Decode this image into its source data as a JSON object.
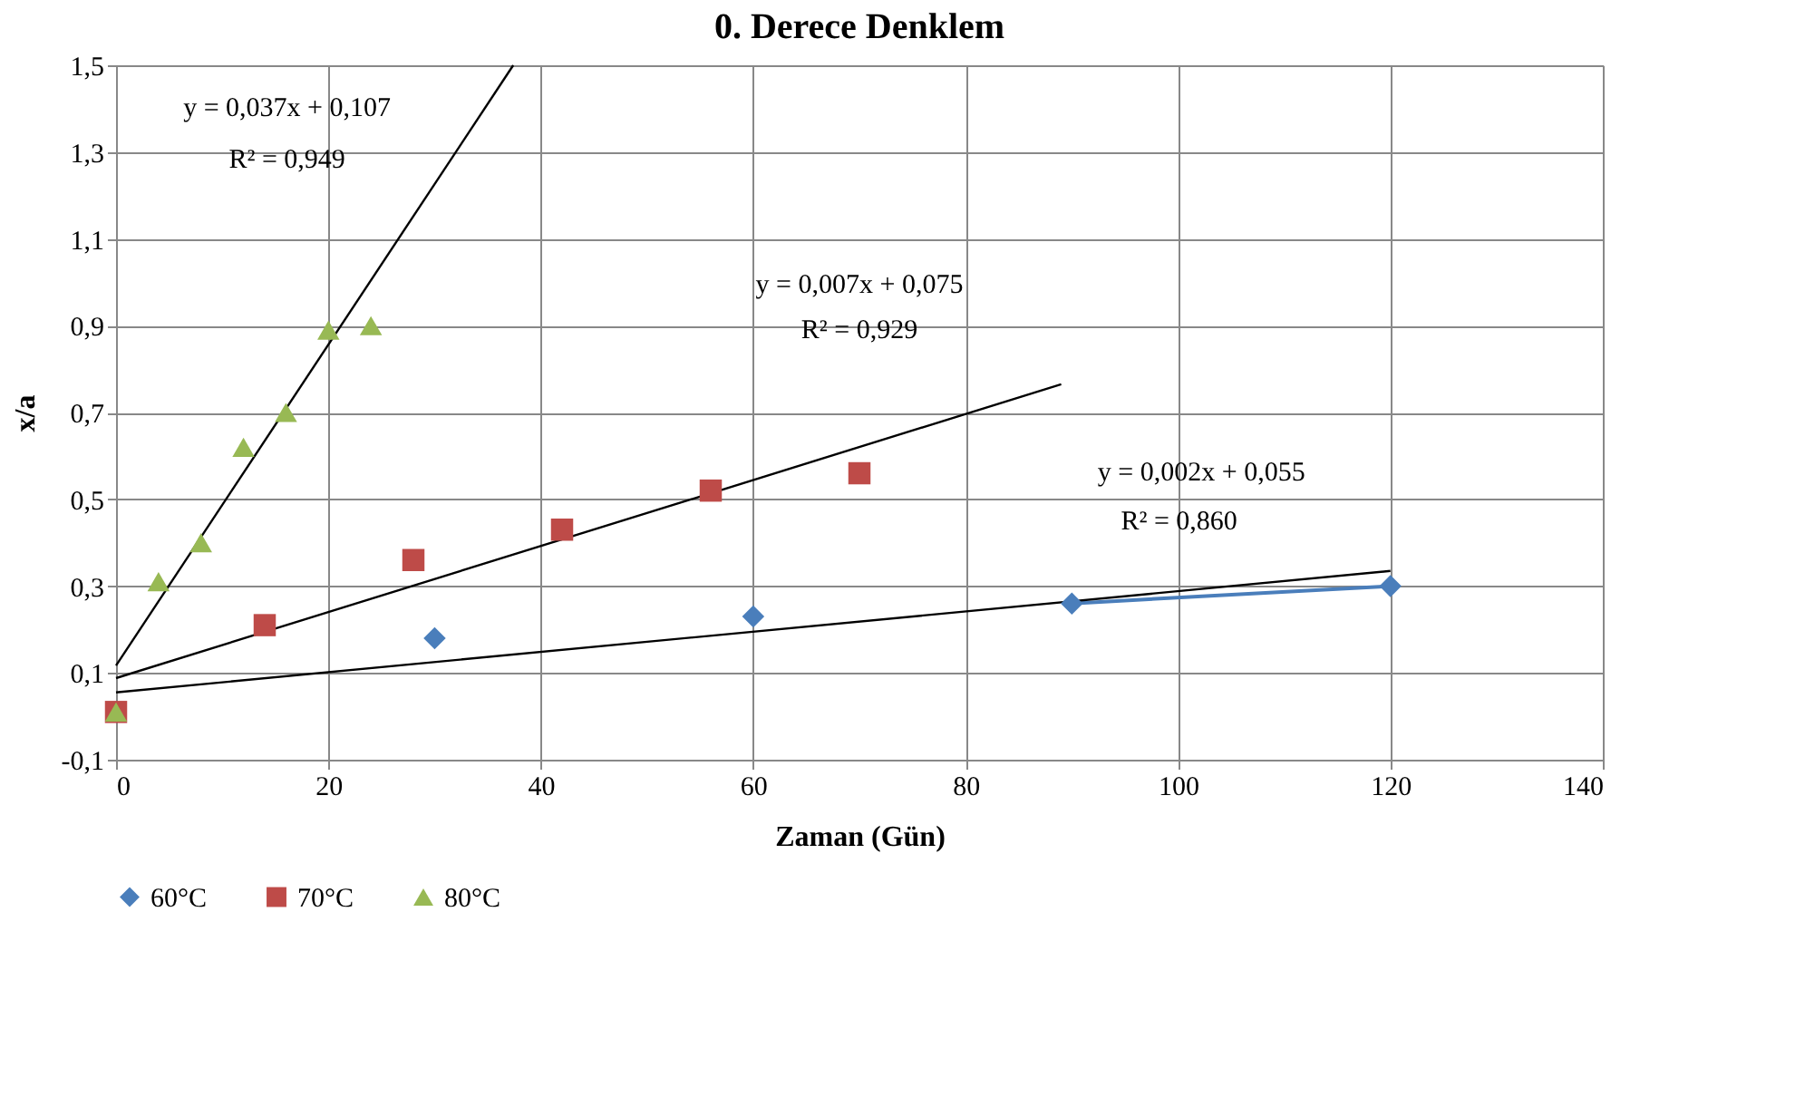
{
  "chart_data": {
    "type": "scatter",
    "title": "0. Derece Denklem",
    "xlabel": "Zaman (Gün)",
    "ylabel": "x/a",
    "xlim": [
      0,
      140
    ],
    "xticks": [
      0,
      20,
      40,
      60,
      80,
      100,
      120,
      140
    ],
    "ylim": [
      -0.1,
      1.5
    ],
    "yticks": [
      {
        "value": -0.1,
        "label": "-0,1"
      },
      {
        "value": 0.1,
        "label": "0,1"
      },
      {
        "value": 0.3,
        "label": "0,3"
      },
      {
        "value": 0.5,
        "label": "0,5"
      },
      {
        "value": 0.7,
        "label": "0,7"
      },
      {
        "value": 0.9,
        "label": "0,9"
      },
      {
        "value": 1.1,
        "label": "1,1"
      },
      {
        "value": 1.3,
        "label": "1,3"
      },
      {
        "value": 1.5,
        "label": "1,5"
      }
    ],
    "grid": true,
    "legend": "bottom",
    "series": [
      {
        "name": "60°C",
        "marker": "diamond",
        "color": "#4a7ebb",
        "x": [
          30,
          60,
          90,
          120
        ],
        "values": [
          0.18,
          0.23,
          0.26,
          0.3
        ]
      },
      {
        "name": "70°C",
        "marker": "square",
        "color": "#be4b48",
        "x": [
          0,
          14,
          28,
          42,
          56,
          70
        ],
        "values": [
          0.01,
          0.21,
          0.36,
          0.43,
          0.52,
          0.56
        ]
      },
      {
        "name": "80°C",
        "marker": "triangle",
        "color": "#98b954",
        "x": [
          0,
          4,
          8,
          12,
          16,
          20,
          24
        ],
        "values": [
          0.01,
          0.31,
          0.4,
          0.62,
          0.7,
          0.89,
          0.9
        ]
      },
      {
        "type": "line",
        "color": "#4a7ebb",
        "x": [
          90,
          120
        ],
        "values": [
          0.26,
          0.3
        ]
      },
      {
        "type": "line",
        "color": "#000000",
        "x": [
          0,
          37.4
        ],
        "values": [
          0.117,
          1.5
        ]
      },
      {
        "type": "line",
        "color": "#000000",
        "x": [
          0,
          89
        ],
        "values": [
          0.088,
          0.765
        ]
      },
      {
        "type": "line",
        "color": "#000000",
        "x": [
          0,
          120
        ],
        "values": [
          0.055,
          0.335
        ]
      }
    ],
    "annotations": [
      "y = 0,037x + 0,107",
      "R² = 0,949",
      "y = 0,007x + 0,075",
      "R² = 0,929",
      "y = 0,002x + 0,055",
      "R² = 0,860"
    ]
  }
}
